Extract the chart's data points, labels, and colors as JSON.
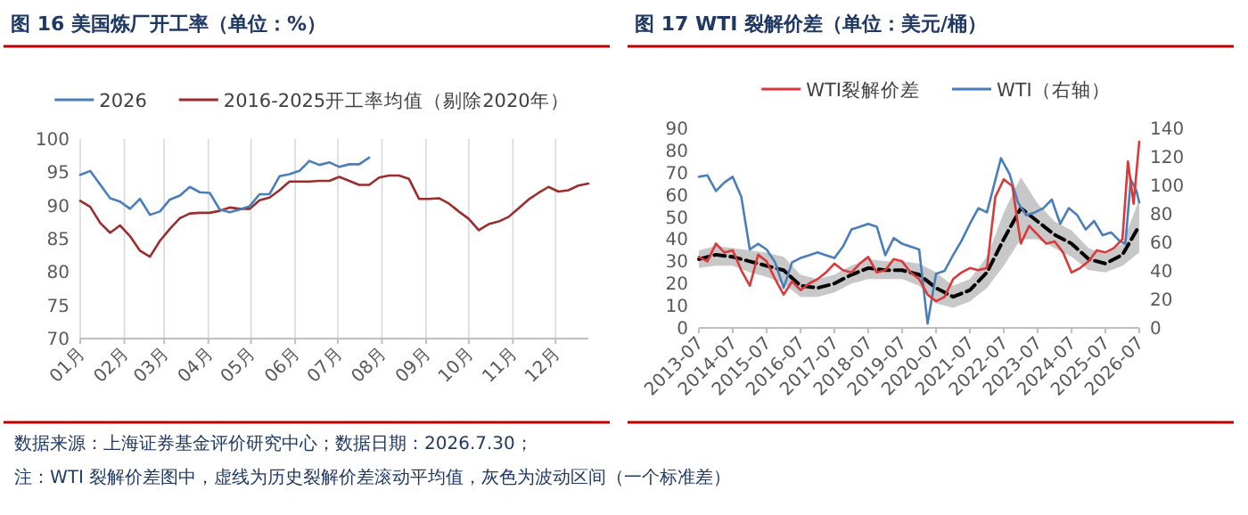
{
  "chart_data": [
    {
      "type": "line",
      "title": "图 16 美国炼厂开工率（单位：%）",
      "xlim": [
        "--01-01",
        "--12-24"
      ],
      "xticks": [
        {
          "value": "--01-01",
          "label": "01月"
        },
        {
          "value": "--02-01",
          "label": "02月"
        },
        {
          "value": "--03-01",
          "label": "03月"
        },
        {
          "value": "--04-01",
          "label": "04月"
        },
        {
          "value": "--05-01",
          "label": "05月"
        },
        {
          "value": "--06-01",
          "label": "06月"
        },
        {
          "value": "--07-01",
          "label": "07月"
        },
        {
          "value": "--08-01",
          "label": "08月"
        },
        {
          "value": "--09-01",
          "label": "09月"
        },
        {
          "value": "--10-01",
          "label": "10月"
        },
        {
          "value": "--11-01",
          "label": "11月"
        },
        {
          "value": "--12-01",
          "label": "12月"
        }
      ],
      "ylim": [
        70,
        100
      ],
      "yticks": [
        70,
        75,
        80,
        85,
        90,
        95,
        100
      ],
      "grid": "x",
      "legend": "top",
      "annotations": [
        "数据来源：上海证券基金评价研究中心；数据日期：2026.7.30；"
      ],
      "series": [
        {
          "name": "2026",
          "color": "#4a7ebb",
          "x": [
            "--01-01",
            "--01-08",
            "--01-22",
            "--01-29",
            "--02-05",
            "--02-12",
            "--02-19",
            "--02-26",
            "--03-05",
            "--03-12",
            "--03-19",
            "--03-26",
            "--04-02",
            "--04-09",
            "--04-16",
            "--04-23",
            "--04-30",
            "--05-07",
            "--05-14",
            "--05-21",
            "--05-28",
            "--06-04",
            "--06-11",
            "--06-18",
            "--06-25",
            "--07-02",
            "--07-09",
            "--07-16",
            "--07-23"
          ],
          "values": [
            94.6,
            95.2,
            91.1,
            90.6,
            89.5,
            91.0,
            88.6,
            89.1,
            90.9,
            91.5,
            92.8,
            92.0,
            91.9,
            89.4,
            89.0,
            89.4,
            89.9,
            91.7,
            91.7,
            94.4,
            94.7,
            95.2,
            96.7,
            96.1,
            96.5,
            95.8,
            96.2,
            96.2,
            97.2
          ]
        },
        {
          "name": "2016-2025开工率均值（剔除2020年）",
          "color": "#9b2d2d",
          "x": [
            "--01-01",
            "--01-08",
            "--01-15",
            "--01-22",
            "--01-29",
            "--02-05",
            "--02-12",
            "--02-19",
            "--02-26",
            "--03-05",
            "--03-12",
            "--03-19",
            "--03-26",
            "--04-02",
            "--04-09",
            "--04-16",
            "--04-23",
            "--04-30",
            "--05-07",
            "--05-14",
            "--05-21",
            "--05-28",
            "--06-04",
            "--06-11",
            "--06-18",
            "--06-25",
            "--07-02",
            "--07-09",
            "--07-16",
            "--07-23",
            "--07-30",
            "--08-06",
            "--08-13",
            "--08-20",
            "--08-27",
            "--09-03",
            "--09-10",
            "--09-17",
            "--09-24",
            "--10-01",
            "--10-08",
            "--10-15",
            "--10-22",
            "--10-29",
            "--11-05",
            "--11-12",
            "--11-19",
            "--11-26",
            "--12-03",
            "--12-10",
            "--12-17",
            "--12-24"
          ],
          "values": [
            90.7,
            89.8,
            87.4,
            85.9,
            87.0,
            85.4,
            83.2,
            82.3,
            84.7,
            86.5,
            88.1,
            88.8,
            88.9,
            88.9,
            89.2,
            89.7,
            89.5,
            89.5,
            90.8,
            91.2,
            92.3,
            93.6,
            93.6,
            93.6,
            93.7,
            93.7,
            94.3,
            93.7,
            93.1,
            93.1,
            94.2,
            94.5,
            94.5,
            94.0,
            91.0,
            91.0,
            91.1,
            90.3,
            89.1,
            88.0,
            86.3,
            87.2,
            87.6,
            88.3,
            89.6,
            90.9,
            91.9,
            92.8,
            92.1,
            92.3,
            93.0,
            93.3
          ]
        }
      ]
    },
    {
      "type": "line",
      "title": "图 17 WTI 裂解价差（单位：美元/桶）",
      "xlim": [
        "2013-07",
        "2026-07"
      ],
      "xticks": [
        "2013-07",
        "2014-07",
        "2015-07",
        "2016-07",
        "2017-07",
        "2018-07",
        "2019-07",
        "2020-07",
        "2021-07",
        "2022-07",
        "2023-07",
        "2024-07",
        "2025-07",
        "2026-07"
      ],
      "ylim": [
        0,
        90
      ],
      "yticks": [
        0,
        10,
        20,
        30,
        40,
        50,
        60,
        70,
        80,
        90
      ],
      "y2lim": [
        0,
        140
      ],
      "y2ticks": [
        0,
        20,
        40,
        60,
        80,
        100,
        120,
        140
      ],
      "legend": "top",
      "annotations": [
        "注：WTI 裂解价差图中，虚线为历史裂解价差滚动平均值，灰色为波动区间（一个标准差）"
      ],
      "series": [
        {
          "name": "WTI裂解价差",
          "color": "#d9393a",
          "x": [
            "2013-07",
            "2013-10",
            "2014-01",
            "2014-04",
            "2014-07",
            "2014-10",
            "2015-01",
            "2015-04",
            "2015-07",
            "2015-10",
            "2016-01",
            "2016-04",
            "2016-07",
            "2016-10",
            "2017-01",
            "2017-04",
            "2017-07",
            "2017-10",
            "2018-01",
            "2018-04",
            "2018-07",
            "2018-10",
            "2019-01",
            "2019-04",
            "2019-07",
            "2019-10",
            "2020-01",
            "2020-04",
            "2020-07",
            "2020-10",
            "2021-01",
            "2021-04",
            "2021-07",
            "2021-10",
            "2022-01",
            "2022-04",
            "2022-07",
            "2022-10",
            "2023-01",
            "2023-04",
            "2023-07",
            "2023-10",
            "2024-01",
            "2024-04",
            "2024-07",
            "2024-10",
            "2025-01",
            "2025-04",
            "2025-07",
            "2025-10",
            "2026-01",
            "2026-03",
            "2026-05",
            "2026-07"
          ],
          "values": [
            32,
            30,
            38,
            34,
            35,
            26,
            19,
            33,
            30,
            22,
            15,
            21,
            17,
            20,
            22,
            25,
            29,
            26,
            25,
            29,
            32,
            25,
            26,
            31,
            30,
            25,
            22,
            15,
            12,
            14,
            22,
            25,
            27,
            26,
            27,
            59,
            67,
            64,
            38,
            46,
            42,
            38,
            39,
            34,
            25,
            27,
            30,
            35,
            34,
            36,
            40,
            75,
            56,
            84
          ]
        },
        {
          "name": "WTI（右轴）",
          "color": "#4a7ebb",
          "axis": "y2",
          "x": [
            "2013-07",
            "2013-10",
            "2014-01",
            "2014-04",
            "2014-07",
            "2014-10",
            "2015-01",
            "2015-04",
            "2015-07",
            "2015-10",
            "2016-01",
            "2016-04",
            "2016-07",
            "2016-10",
            "2017-01",
            "2017-04",
            "2017-07",
            "2017-10",
            "2018-01",
            "2018-04",
            "2018-07",
            "2018-10",
            "2019-01",
            "2019-04",
            "2019-07",
            "2019-10",
            "2020-01",
            "2020-04",
            "2020-07",
            "2020-10",
            "2021-01",
            "2021-04",
            "2021-07",
            "2021-10",
            "2022-01",
            "2022-06",
            "2022-09",
            "2022-12",
            "2023-03",
            "2023-06",
            "2023-09",
            "2023-12",
            "2024-03",
            "2024-06",
            "2024-09",
            "2024-12",
            "2025-03",
            "2025-06",
            "2025-09",
            "2025-12",
            "2026-02",
            "2026-04",
            "2026-06",
            "2026-07"
          ],
          "values": [
            106,
            107,
            96,
            102,
            106,
            92,
            55,
            59,
            55,
            46,
            28,
            46,
            49,
            51,
            53,
            51,
            49,
            57,
            69,
            71,
            73,
            71,
            51,
            63,
            59,
            57,
            55,
            3,
            38,
            40,
            51,
            61,
            73,
            84,
            81,
            119,
            108,
            88,
            79,
            81,
            84,
            90,
            73,
            84,
            79,
            69,
            75,
            65,
            67,
            61,
            59,
            104,
            96,
            88
          ]
        },
        {
          "color": "#000000",
          "line_style": "dashed",
          "x": [
            "2013-07",
            "2014-01",
            "2014-07",
            "2015-01",
            "2015-07",
            "2016-01",
            "2016-07",
            "2017-01",
            "2017-07",
            "2018-01",
            "2018-07",
            "2019-01",
            "2019-07",
            "2020-01",
            "2020-07",
            "2021-01",
            "2021-07",
            "2022-01",
            "2022-07",
            "2023-01",
            "2023-07",
            "2024-01",
            "2024-07",
            "2025-01",
            "2025-07",
            "2026-01",
            "2026-07"
          ],
          "values": [
            31,
            33,
            32,
            30,
            28,
            26,
            19,
            18,
            20,
            24,
            27,
            26,
            26,
            24,
            18,
            14,
            17,
            25,
            40,
            54,
            48,
            42,
            38,
            31,
            29,
            33,
            46
          ],
          "lower": [
            27,
            28,
            28,
            25,
            23,
            20,
            14,
            14,
            16,
            20,
            22,
            22,
            22,
            19,
            11,
            9,
            12,
            18,
            28,
            40,
            40,
            36,
            32,
            26,
            25,
            28,
            34
          ],
          "upper": [
            35,
            37,
            36,
            35,
            34,
            32,
            24,
            22,
            24,
            28,
            31,
            30,
            30,
            29,
            25,
            19,
            22,
            32,
            52,
            68,
            56,
            48,
            44,
            36,
            33,
            38,
            58
          ]
        }
      ]
    }
  ]
}
